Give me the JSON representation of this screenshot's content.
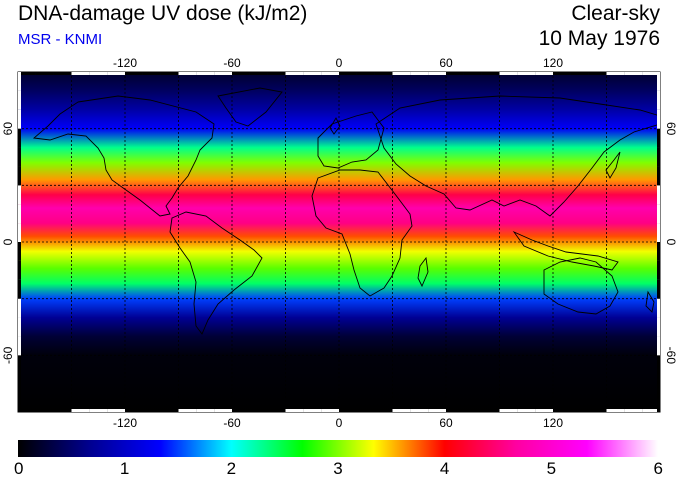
{
  "header": {
    "title": "DNA-damage UV dose (kJ/m2)",
    "credit": "MSR - KNMI",
    "condition": "Clear-sky",
    "date": "10 May 1976"
  },
  "map": {
    "projection": "equirectangular",
    "lon_range": [
      -180,
      180
    ],
    "lat_range": [
      -90,
      90
    ],
    "graticule": "dashed",
    "lon_ticks": [
      {
        "value": -120,
        "label": "-120"
      },
      {
        "value": -60,
        "label": "-60"
      },
      {
        "value": 0,
        "label": "0"
      },
      {
        "value": 60,
        "label": "60"
      },
      {
        "value": 120,
        "label": "120"
      }
    ],
    "lat_ticks": [
      {
        "value": 60,
        "label": "60"
      },
      {
        "value": 0,
        "label": "0"
      },
      {
        "value": -60,
        "label": "-60"
      }
    ],
    "grid_lons": [
      -150,
      -120,
      -90,
      -60,
      -30,
      0,
      30,
      60,
      90,
      120,
      150
    ],
    "grid_lats": [
      60,
      30,
      0,
      -30,
      -60
    ],
    "dose_by_latitude": [
      {
        "lat": 90,
        "dose": 0.2
      },
      {
        "lat": 80,
        "dose": 0.45
      },
      {
        "lat": 70,
        "dose": 0.8
      },
      {
        "lat": 60,
        "dose": 1.3
      },
      {
        "lat": 50,
        "dose": 2.3
      },
      {
        "lat": 42,
        "dose": 3.0
      },
      {
        "lat": 33,
        "dose": 3.6
      },
      {
        "lat": 25,
        "dose": 4.3
      },
      {
        "lat": 18,
        "dose": 4.75
      },
      {
        "lat": 10,
        "dose": 4.55
      },
      {
        "lat": 3,
        "dose": 3.8
      },
      {
        "lat": -5,
        "dose": 3.3
      },
      {
        "lat": -14,
        "dose": 2.9
      },
      {
        "lat": -22,
        "dose": 2.4
      },
      {
        "lat": -30,
        "dose": 1.5
      },
      {
        "lat": -40,
        "dose": 0.7
      },
      {
        "lat": -50,
        "dose": 0.25
      },
      {
        "lat": -60,
        "dose": 0.05
      },
      {
        "lat": -90,
        "dose": 0.0
      }
    ]
  },
  "colorbar": {
    "min": 0,
    "max": 6,
    "colors": [
      "#000000",
      "#00008f",
      "#0000ff",
      "#00ffff",
      "#00ff00",
      "#ffff00",
      "#ff0000",
      "#ff00a0",
      "#ff00ff",
      "#ffffff"
    ],
    "ticks": [
      {
        "value": 0,
        "label": "0"
      },
      {
        "value": 1,
        "label": "1"
      },
      {
        "value": 2,
        "label": "2"
      },
      {
        "value": 3,
        "label": "3"
      },
      {
        "value": 4,
        "label": "4"
      },
      {
        "value": 5,
        "label": "5"
      },
      {
        "value": 6,
        "label": "6"
      }
    ]
  }
}
